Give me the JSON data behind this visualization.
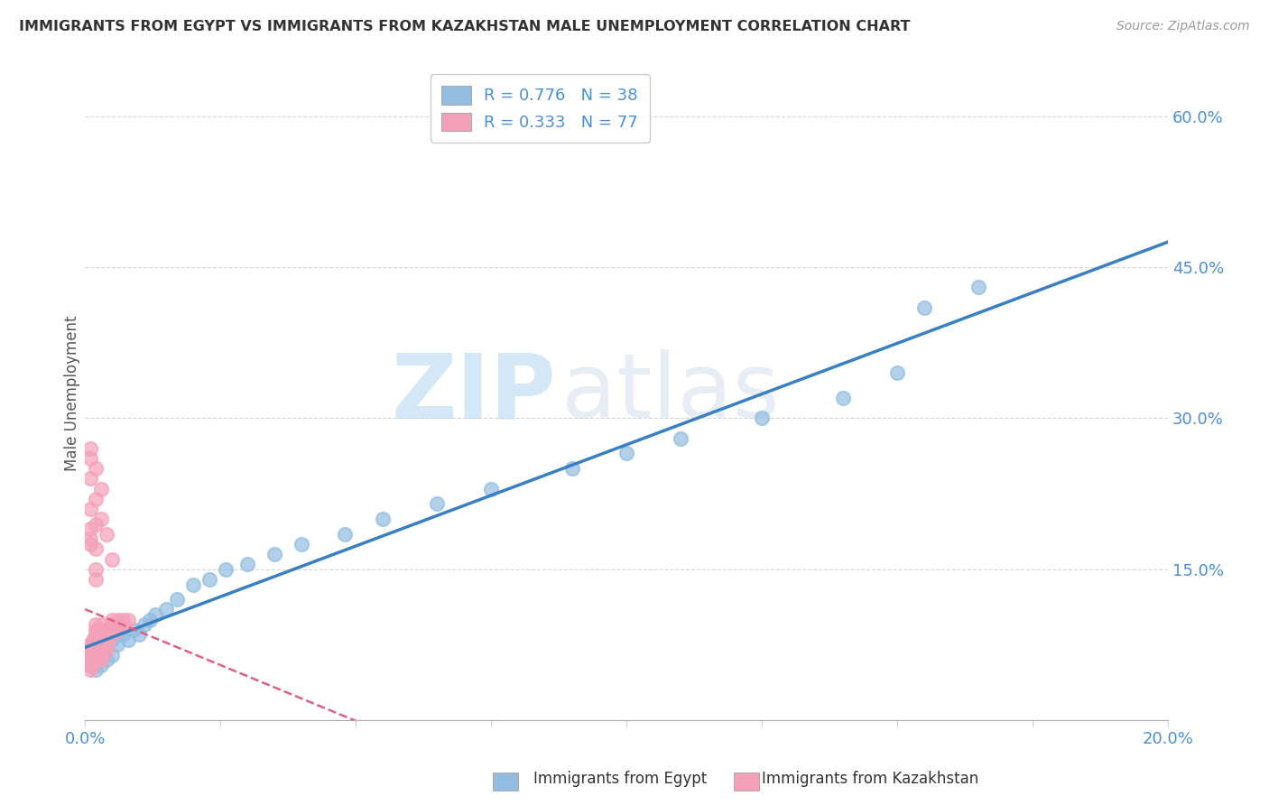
{
  "title": "IMMIGRANTS FROM EGYPT VS IMMIGRANTS FROM KAZAKHSTAN MALE UNEMPLOYMENT CORRELATION CHART",
  "source": "Source: ZipAtlas.com",
  "ylabel": "Male Unemployment",
  "yticks": [
    0.0,
    0.15,
    0.3,
    0.45,
    0.6
  ],
  "ytick_labels": [
    "",
    "15.0%",
    "30.0%",
    "45.0%",
    "60.0%"
  ],
  "xlim": [
    0.0,
    0.2
  ],
  "ylim": [
    0.0,
    0.65
  ],
  "legend_r1": "R = 0.776",
  "legend_n1": "N = 38",
  "legend_r2": "R = 0.333",
  "legend_n2": "N = 77",
  "series1_label": "Immigrants from Egypt",
  "series2_label": "Immigrants from Kazakhstan",
  "color1": "#92BDE0",
  "color2": "#F4A0B8",
  "regression1_color": "#3A7FC1",
  "regression2_color": "#E06080",
  "egypt_x": [
    0.001,
    0.002,
    0.002,
    0.003,
    0.003,
    0.003,
    0.004,
    0.004,
    0.005,
    0.005,
    0.006,
    0.007,
    0.008,
    0.009,
    0.01,
    0.011,
    0.012,
    0.013,
    0.015,
    0.017,
    0.02,
    0.023,
    0.026,
    0.03,
    0.035,
    0.04,
    0.048,
    0.055,
    0.065,
    0.075,
    0.09,
    0.1,
    0.11,
    0.125,
    0.14,
    0.15,
    0.155,
    0.165
  ],
  "egypt_y": [
    0.06,
    0.05,
    0.07,
    0.055,
    0.065,
    0.08,
    0.06,
    0.075,
    0.065,
    0.08,
    0.075,
    0.085,
    0.08,
    0.09,
    0.085,
    0.095,
    0.1,
    0.105,
    0.11,
    0.12,
    0.135,
    0.14,
    0.15,
    0.155,
    0.165,
    0.175,
    0.185,
    0.2,
    0.215,
    0.23,
    0.25,
    0.265,
    0.28,
    0.3,
    0.32,
    0.345,
    0.41,
    0.43
  ],
  "kazakhstan_x": [
    0.0005,
    0.0006,
    0.0007,
    0.0008,
    0.0009,
    0.001,
    0.001,
    0.001,
    0.001,
    0.001,
    0.001,
    0.0012,
    0.0013,
    0.0014,
    0.0015,
    0.0015,
    0.0015,
    0.0015,
    0.0016,
    0.0017,
    0.0018,
    0.002,
    0.002,
    0.002,
    0.002,
    0.002,
    0.002,
    0.002,
    0.002,
    0.002,
    0.0022,
    0.0023,
    0.0025,
    0.0025,
    0.0025,
    0.003,
    0.003,
    0.003,
    0.003,
    0.003,
    0.003,
    0.003,
    0.003,
    0.0035,
    0.004,
    0.004,
    0.004,
    0.004,
    0.004,
    0.0045,
    0.005,
    0.005,
    0.005,
    0.005,
    0.006,
    0.006,
    0.006,
    0.007,
    0.007,
    0.008,
    0.001,
    0.001,
    0.002,
    0.002,
    0.003,
    0.003,
    0.004,
    0.005,
    0.001,
    0.002,
    0.001,
    0.001,
    0.002,
    0.001,
    0.002,
    0.001,
    0.002
  ],
  "kazakhstan_y": [
    0.06,
    0.065,
    0.07,
    0.06,
    0.055,
    0.05,
    0.055,
    0.06,
    0.065,
    0.07,
    0.075,
    0.065,
    0.07,
    0.06,
    0.065,
    0.07,
    0.075,
    0.08,
    0.075,
    0.07,
    0.075,
    0.065,
    0.07,
    0.075,
    0.08,
    0.085,
    0.09,
    0.095,
    0.065,
    0.06,
    0.08,
    0.085,
    0.075,
    0.08,
    0.09,
    0.08,
    0.085,
    0.09,
    0.095,
    0.075,
    0.07,
    0.065,
    0.06,
    0.085,
    0.08,
    0.085,
    0.09,
    0.07,
    0.075,
    0.085,
    0.085,
    0.09,
    0.095,
    0.1,
    0.09,
    0.095,
    0.1,
    0.095,
    0.1,
    0.1,
    0.175,
    0.21,
    0.22,
    0.195,
    0.23,
    0.2,
    0.185,
    0.16,
    0.24,
    0.25,
    0.18,
    0.19,
    0.17,
    0.26,
    0.15,
    0.27,
    0.14
  ],
  "watermark_zip": "ZIP",
  "watermark_atlas": "atlas",
  "background_color": "#FFFFFF",
  "grid_color": "#CCCCCC"
}
